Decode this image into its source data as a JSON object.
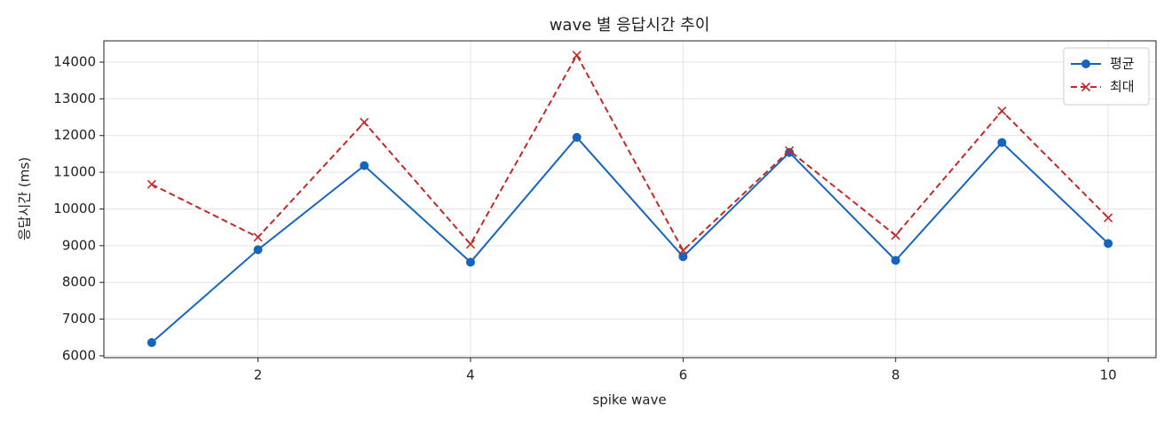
{
  "chart_data": {
    "type": "line",
    "title": "wave 별 응답시간 추이",
    "xlabel": "spike wave",
    "ylabel": "응답시간 (ms)",
    "x": [
      1,
      2,
      3,
      4,
      5,
      6,
      7,
      8,
      9,
      10
    ],
    "series": [
      {
        "name": "평균",
        "color": "#1565c0",
        "linestyle": "solid",
        "marker": "circle",
        "values": [
          6360,
          8890,
          11180,
          8550,
          11950,
          8700,
          11540,
          8600,
          11810,
          9060
        ]
      },
      {
        "name": "최대",
        "color": "#c62828",
        "linestyle": "dashed",
        "marker": "x",
        "values": [
          10670,
          9230,
          12360,
          9040,
          14190,
          8870,
          11590,
          9280,
          12670,
          9760
        ]
      }
    ],
    "xlim": [
      0.55,
      10.45
    ],
    "ylim": [
      5950,
      14580
    ],
    "xticks": [
      2,
      4,
      6,
      8,
      10
    ],
    "yticks": [
      6000,
      7000,
      8000,
      9000,
      10000,
      11000,
      12000,
      13000,
      14000
    ],
    "grid": true,
    "legend": "upper right"
  }
}
